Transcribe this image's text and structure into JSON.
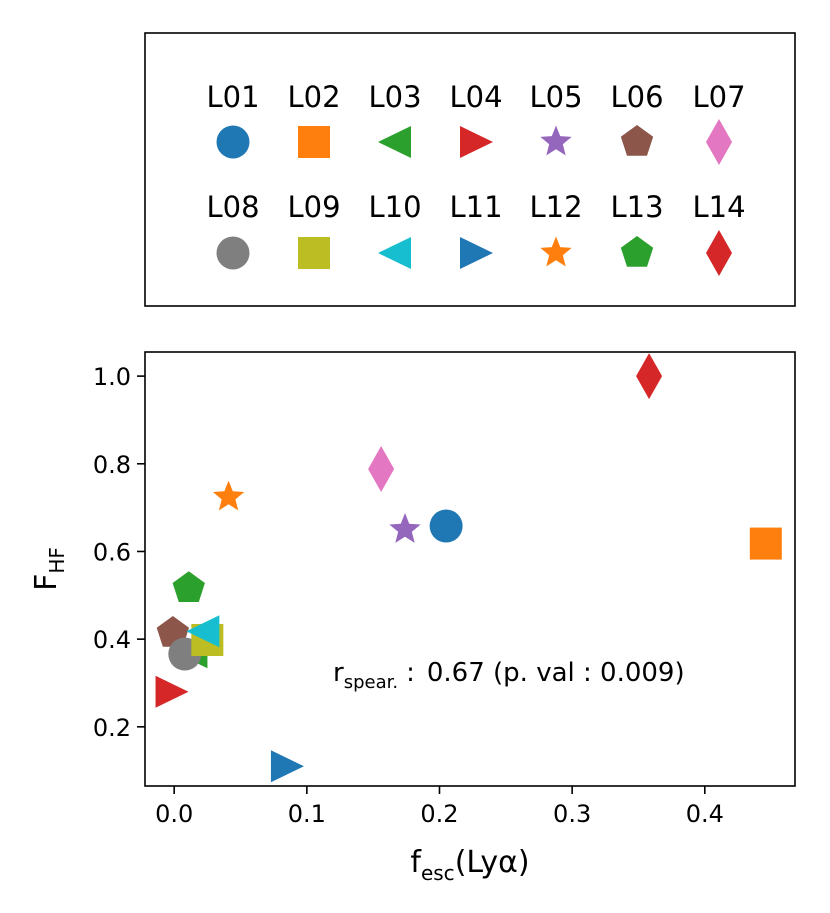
{
  "chart_data": {
    "type": "scatter",
    "title": "",
    "xlabel": {
      "main": "f",
      "sub": "esc",
      "tail": "(Lyα)"
    },
    "ylabel": {
      "main": "F",
      "sub": "HF"
    },
    "xlim": [
      -0.022,
      0.468
    ],
    "ylim": [
      0.065,
      1.055
    ],
    "xticks": [
      0.0,
      0.1,
      0.2,
      0.3,
      0.4
    ],
    "xtick_labels": [
      "0.0",
      "0.1",
      "0.2",
      "0.3",
      "0.4"
    ],
    "yticks": [
      0.2,
      0.4,
      0.6,
      0.8,
      1.0
    ],
    "ytick_labels": [
      "0.2",
      "0.4",
      "0.6",
      "0.8",
      "1.0"
    ],
    "grid": false,
    "legend_placement": "above",
    "annotation": {
      "r_main": "r",
      "r_sub": "spear.",
      "colon": ":",
      "value_text": "0.67 (p. val :  0.009)"
    },
    "series": [
      {
        "name": "L01",
        "marker": "circle",
        "color": "#1f77b4",
        "x": 0.205,
        "y": 0.658
      },
      {
        "name": "L02",
        "marker": "square",
        "color": "#ff7f0e",
        "x": 0.446,
        "y": 0.618
      },
      {
        "name": "L03",
        "marker": "triangle-left",
        "color": "#2ca02c",
        "x": 0.013,
        "y": 0.37
      },
      {
        "name": "L04",
        "marker": "triangle-right",
        "color": "#d62728",
        "x": -0.002,
        "y": 0.28
      },
      {
        "name": "L05",
        "marker": "star",
        "color": "#9467bd",
        "x": 0.174,
        "y": 0.65
      },
      {
        "name": "L06",
        "marker": "pentagon",
        "color": "#8c564b",
        "x": -0.001,
        "y": 0.414
      },
      {
        "name": "L07",
        "marker": "diamond",
        "color": "#e377c2",
        "x": 0.156,
        "y": 0.788
      },
      {
        "name": "L08",
        "marker": "circle",
        "color": "#7f7f7f",
        "x": 0.008,
        "y": 0.366
      },
      {
        "name": "L09",
        "marker": "square",
        "color": "#bcbd22",
        "x": 0.025,
        "y": 0.398
      },
      {
        "name": "L10",
        "marker": "triangle-left",
        "color": "#17becf",
        "x": 0.022,
        "y": 0.418
      },
      {
        "name": "L11",
        "marker": "triangle-right",
        "color": "#1f77b4",
        "x": 0.085,
        "y": 0.11
      },
      {
        "name": "L12",
        "marker": "star",
        "color": "#ff7f0e",
        "x": 0.041,
        "y": 0.724
      },
      {
        "name": "L13",
        "marker": "pentagon",
        "color": "#2ca02c",
        "x": 0.011,
        "y": 0.516
      },
      {
        "name": "L14",
        "marker": "diamond",
        "color": "#d62728",
        "x": 0.358,
        "y": 1.0
      }
    ]
  }
}
